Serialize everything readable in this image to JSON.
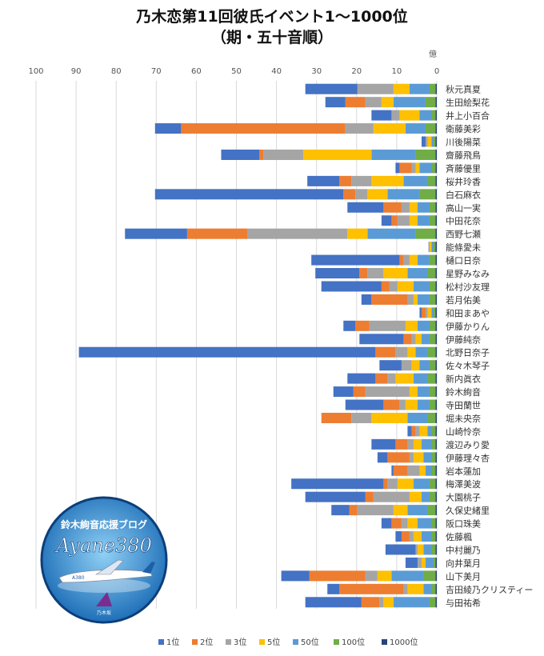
{
  "chart_data": {
    "type": "bar",
    "orientation": "horizontal",
    "stacked": true,
    "title": "乃木恋第11回彼氏イベント1～1000位",
    "subtitle": "（期・五十音順）",
    "unit_label": "億",
    "xlim": [
      0,
      100
    ],
    "x_reversed": true,
    "x_ticks": [
      100,
      90,
      80,
      70,
      60,
      50,
      40,
      30,
      20,
      10,
      0
    ],
    "legend_position": "bottom",
    "categories": [
      "秋元真夏",
      "生田絵梨花",
      "井上小百合",
      "衛藤美彩",
      "川後陽菜",
      "齋藤飛鳥",
      "斉藤優里",
      "桜井玲香",
      "白石麻衣",
      "高山一実",
      "中田花奈",
      "西野七瀬",
      "能條愛未",
      "樋口日奈",
      "星野みなみ",
      "松村沙友理",
      "若月佑美",
      "和田まあや",
      "伊藤かりん",
      "伊藤純奈",
      "北野日奈子",
      "佐々木琴子",
      "新内眞衣",
      "鈴木絢音",
      "寺田蘭世",
      "堀未央奈",
      "山崎怜奈",
      "渡辺みり愛",
      "伊藤理々杏",
      "岩本蓮加",
      "梅澤美波",
      "大園桃子",
      "久保史緒里",
      "阪口珠美",
      "佐藤楓",
      "中村麗乃",
      "向井葉月",
      "山下美月",
      "吉田綾乃クリスティー",
      "与田祐希"
    ],
    "series": [
      {
        "name": "1000位",
        "color": "#264478",
        "values": [
          0.3,
          0.3,
          0.3,
          0.3,
          0.3,
          0.3,
          0.3,
          0.3,
          0.3,
          0.3,
          0.3,
          0.3,
          0.3,
          0.3,
          0.3,
          0.3,
          0.3,
          0.3,
          0.3,
          0.3,
          0.3,
          0.3,
          0.3,
          0.3,
          0.3,
          0.3,
          0.3,
          0.3,
          0.3,
          0.3,
          0.3,
          0.3,
          0.3,
          0.3,
          0.3,
          0.3,
          0.3,
          0.3,
          0.3,
          0.3
        ]
      },
      {
        "name": "100位",
        "color": "#70AD47",
        "values": [
          1.5,
          2.5,
          1,
          2.5,
          0.5,
          5,
          1,
          2,
          4,
          1.5,
          1.5,
          5,
          0.5,
          1.5,
          2,
          1.5,
          1.5,
          0.5,
          1.5,
          1.5,
          2,
          1.5,
          2,
          1.5,
          1.5,
          2,
          1,
          1,
          1,
          1,
          1.5,
          1.5,
          2,
          1,
          1,
          1,
          0.5,
          3,
          1,
          1.5
        ]
      },
      {
        "name": "50位",
        "color": "#5B9BD5",
        "values": [
          5,
          8,
          3,
          5,
          0.5,
          11,
          3,
          6,
          8,
          3,
          3,
          12,
          0.5,
          3,
          5,
          4,
          3,
          0.5,
          3,
          2,
          3,
          2.5,
          3.5,
          3,
          3,
          5,
          1,
          2.5,
          2,
          1.5,
          4,
          2,
          5,
          3.5,
          2.5,
          2,
          2,
          8,
          2,
          9
        ]
      },
      {
        "name": "5位",
        "color": "#FFC000",
        "values": [
          4,
          3,
          5,
          8,
          1,
          17,
          1,
          8,
          5,
          2,
          2,
          5,
          0.5,
          2,
          6,
          4,
          1,
          1,
          3,
          1.5,
          2,
          2,
          4.5,
          2,
          3,
          9,
          2,
          2,
          2.5,
          1.5,
          4,
          3,
          3.5,
          2.5,
          2,
          1.5,
          1,
          3.5,
          4,
          2.5
        ]
      },
      {
        "name": "3位",
        "color": "#A5A5A5",
        "values": [
          9,
          4,
          2,
          7,
          0.5,
          10,
          1,
          5,
          3,
          2,
          3,
          25,
          0.3,
          1.5,
          4,
          2,
          1.5,
          0.5,
          9,
          1,
          3,
          2.5,
          2,
          11,
          1.5,
          5,
          1,
          1.5,
          1,
          3,
          2.5,
          9,
          9,
          1.5,
          1,
          0.5,
          1,
          3,
          1,
          1
        ]
      },
      {
        "name": "2位",
        "color": "#ED7D31",
        "values": [
          0,
          5,
          0,
          41,
          0,
          1,
          3,
          3,
          3,
          4.5,
          1.5,
          15,
          0,
          1,
          2,
          2,
          9,
          1,
          3.5,
          2,
          5,
          0,
          3,
          3,
          4,
          7.5,
          1,
          3,
          5.5,
          3.5,
          1,
          2,
          2,
          2.5,
          2,
          0,
          0,
          14,
          16,
          4.5
        ]
      },
      {
        "name": "1位",
        "color": "#4472C4",
        "values": [
          13,
          5,
          5,
          6.5,
          1,
          9.5,
          1,
          8,
          47,
          9,
          2.5,
          15.5,
          0,
          22,
          11,
          15,
          2.5,
          0.5,
          3,
          11,
          74,
          5.5,
          7,
          5,
          9.5,
          0,
          1,
          6,
          2.5,
          0.5,
          23,
          15,
          4.5,
          2.5,
          1.5,
          7.5,
          3,
          7,
          3,
          14
        ]
      }
    ]
  },
  "logo": {
    "line1": "鈴木絢音応援ブログ",
    "line2": "Ayane380",
    "plane_mark": "A380",
    "stamp": "乃木坂"
  }
}
